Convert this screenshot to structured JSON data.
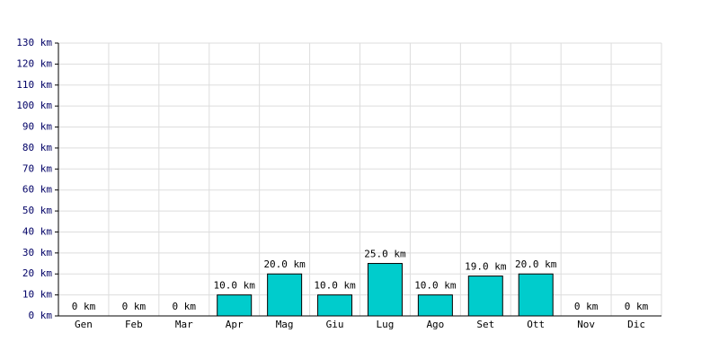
{
  "chart_data": {
    "type": "bar",
    "categories": [
      "Gen",
      "Feb",
      "Mar",
      "Apr",
      "Mag",
      "Giu",
      "Lug",
      "Ago",
      "Set",
      "Ott",
      "Nov",
      "Dic"
    ],
    "values": [
      0,
      0,
      0,
      10,
      20,
      10,
      25,
      10,
      19,
      20,
      0,
      0
    ],
    "value_labels": [
      "0 km",
      "0 km",
      "0 km",
      "10.0 km",
      "20.0 km",
      "10.0 km",
      "25.0 km",
      "10.0 km",
      "19.0 km",
      "20.0 km",
      "0 km",
      "0 km"
    ],
    "color": "#00cccc",
    "ylim": [
      0,
      130
    ],
    "yticks": [
      {
        "value": 0,
        "label": "0 km"
      },
      {
        "value": 10,
        "label": "10 km"
      },
      {
        "value": 20,
        "label": "20 km"
      },
      {
        "value": 30,
        "label": "30 km"
      },
      {
        "value": 40,
        "label": "40 km"
      },
      {
        "value": 50,
        "label": "50 km"
      },
      {
        "value": 60,
        "label": "60 km"
      },
      {
        "value": 70,
        "label": "70 km"
      },
      {
        "value": 80,
        "label": "80 km"
      },
      {
        "value": 90,
        "label": "90 km"
      },
      {
        "value": 100,
        "label": "100 km"
      },
      {
        "value": 110,
        "label": "110 km"
      },
      {
        "value": 120,
        "label": "120 km"
      },
      {
        "value": 130,
        "label": "130 km"
      }
    ],
    "grid": true
  }
}
